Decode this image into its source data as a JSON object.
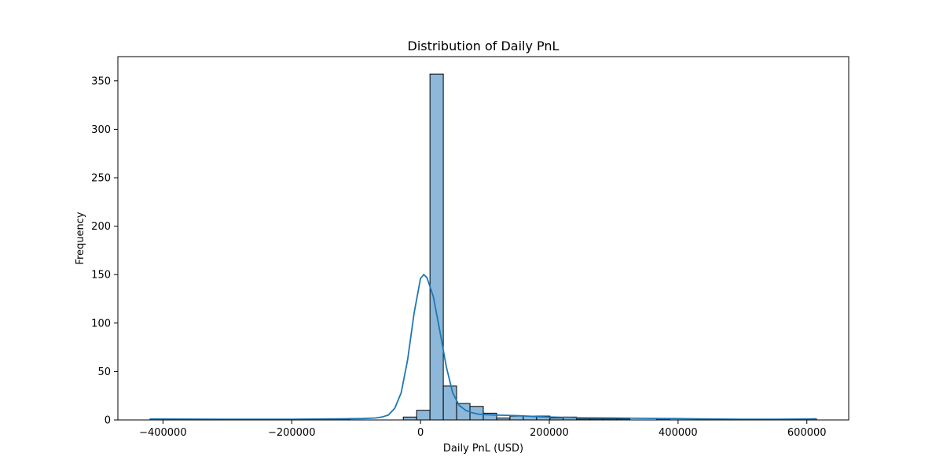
{
  "chart_data": {
    "type": "bar",
    "title": "Distribution of Daily PnL",
    "xlabel": "Daily PnL (USD)",
    "ylabel": "Frequency",
    "xlim": [
      -470000,
      665000
    ],
    "ylim": [
      0,
      375
    ],
    "grid": false,
    "legend": "none",
    "x_ticks": [
      {
        "value": -400000,
        "label": "−400000"
      },
      {
        "value": -200000,
        "label": "−200000"
      },
      {
        "value": 0,
        "label": "0"
      },
      {
        "value": 200000,
        "label": "200000"
      },
      {
        "value": 400000,
        "label": "400000"
      },
      {
        "value": 600000,
        "label": "600000"
      }
    ],
    "y_ticks": [
      {
        "value": 0,
        "label": "0"
      },
      {
        "value": 50,
        "label": "50"
      },
      {
        "value": 100,
        "label": "100"
      },
      {
        "value": 150,
        "label": "150"
      },
      {
        "value": 200,
        "label": "200"
      },
      {
        "value": 250,
        "label": "250"
      },
      {
        "value": 300,
        "label": "300"
      },
      {
        "value": 350,
        "label": "350"
      }
    ],
    "bin_start": -420000,
    "bin_width": 20700,
    "counts": [
      1,
      0,
      0,
      0,
      0,
      0,
      0,
      0,
      0,
      0,
      0,
      0,
      0,
      0,
      1,
      0,
      0,
      0,
      0,
      3,
      10,
      357,
      35,
      17,
      14,
      7,
      2,
      4,
      4,
      4,
      2,
      3,
      1,
      1,
      1,
      1,
      0,
      0,
      1,
      0,
      0,
      1,
      0,
      0,
      0,
      0,
      0,
      0,
      0,
      1
    ],
    "kde": {
      "x": [
        -420000,
        -300000,
        -200000,
        -120000,
        -90000,
        -70000,
        -60000,
        -50000,
        -40000,
        -30000,
        -20000,
        -10000,
        0,
        5000,
        10000,
        20000,
        30000,
        40000,
        50000,
        60000,
        70000,
        80000,
        90000,
        100000,
        120000,
        150000,
        180000,
        200000,
        250000,
        300000,
        350000,
        400000,
        450000,
        500000,
        550000,
        600000,
        615000
      ],
      "y": [
        1,
        0.7,
        0.7,
        1.2,
        1.5,
        2,
        3,
        5,
        12,
        28,
        62,
        110,
        146,
        150,
        147,
        127,
        92,
        55,
        28,
        15,
        10,
        7.5,
        6,
        5.5,
        5,
        4.5,
        3.5,
        3,
        2.2,
        2,
        1.6,
        1.4,
        1,
        0.7,
        0.7,
        1,
        1.2
      ]
    },
    "colors": {
      "bar_fill": "#8db8d9",
      "bar_edge": "#000000",
      "kde_line": "#1f77b4"
    }
  }
}
